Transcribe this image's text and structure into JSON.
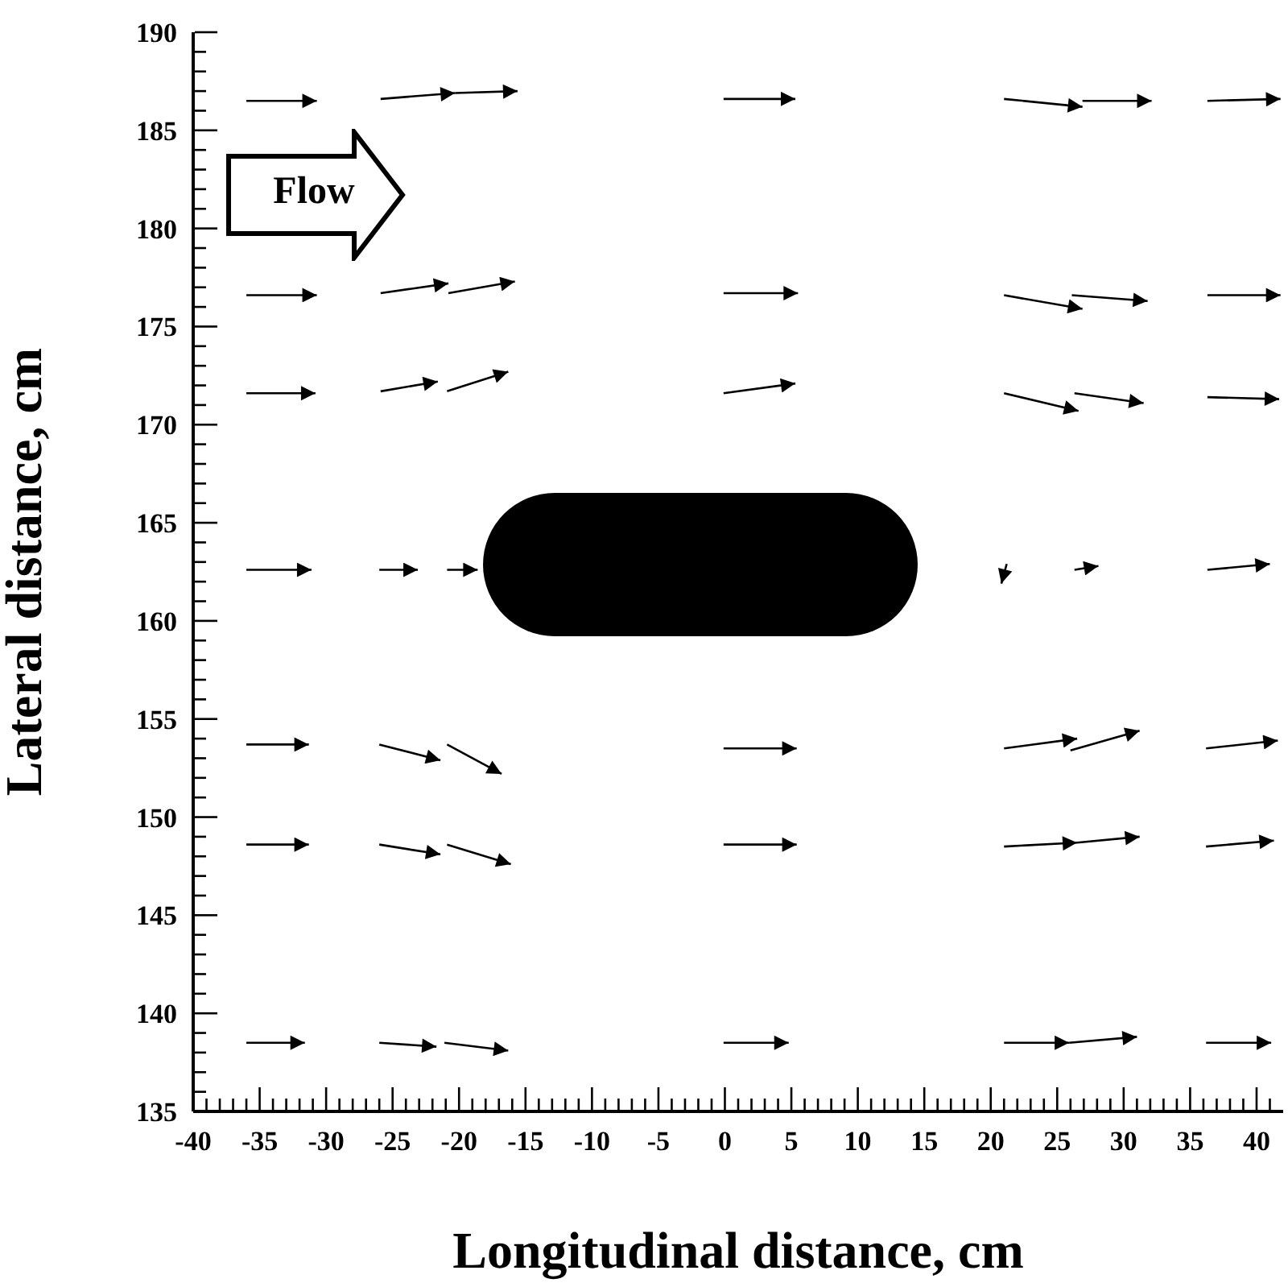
{
  "chart_data": {
    "type": "line",
    "xlabel": "Longitudinal distance, cm",
    "ylabel": "Lateral distance, cm",
    "annotations": [
      "Flow"
    ],
    "xlim": [
      -40,
      42
    ],
    "ylim": [
      135,
      190
    ],
    "line_style": "solid",
    "xticks": [
      -40,
      {
        "value": -39,
        "label": null
      },
      {
        "value": -38,
        "label": null
      },
      {
        "value": -37,
        "label": null
      },
      {
        "value": -36,
        "label": null
      },
      -35,
      {
        "value": -34,
        "label": null
      },
      {
        "value": -33,
        "label": null
      },
      {
        "value": -32,
        "label": null
      },
      {
        "value": -31,
        "label": null
      },
      -30,
      {
        "value": -29,
        "label": null
      },
      {
        "value": -28,
        "label": null
      },
      {
        "value": -27,
        "label": null
      },
      {
        "value": -26,
        "label": null
      },
      -25,
      {
        "value": -24,
        "label": null
      },
      {
        "value": -23,
        "label": null
      },
      {
        "value": -22,
        "label": null
      },
      {
        "value": -21,
        "label": null
      },
      -20,
      {
        "value": -19,
        "label": null
      },
      {
        "value": -18,
        "label": null
      },
      {
        "value": -17,
        "label": null
      },
      {
        "value": -16,
        "label": null
      },
      -15,
      {
        "value": -14,
        "label": null
      },
      {
        "value": -13,
        "label": null
      },
      {
        "value": -12,
        "label": null
      },
      {
        "value": -11,
        "label": null
      },
      -10,
      {
        "value": -9,
        "label": null
      },
      {
        "value": -8,
        "label": null
      },
      {
        "value": -7,
        "label": null
      },
      {
        "value": -6,
        "label": null
      },
      -5,
      {
        "value": -4,
        "label": null
      },
      {
        "value": -3,
        "label": null
      },
      {
        "value": -2,
        "label": null
      },
      {
        "value": -1,
        "label": null
      },
      0,
      {
        "value": 1,
        "label": null
      },
      {
        "value": 2,
        "label": null
      },
      {
        "value": 3,
        "label": null
      },
      {
        "value": 4,
        "label": null
      },
      5,
      {
        "value": 6,
        "label": null
      },
      {
        "value": 7,
        "label": null
      },
      {
        "value": 8,
        "label": null
      },
      {
        "value": 9,
        "label": null
      },
      10,
      {
        "value": 11,
        "label": null
      },
      {
        "value": 12,
        "label": null
      },
      {
        "value": 13,
        "label": null
      },
      {
        "value": 14,
        "label": null
      },
      15,
      {
        "value": 16,
        "label": null
      },
      {
        "value": 17,
        "label": null
      },
      {
        "value": 18,
        "label": null
      },
      {
        "value": 19,
        "label": null
      },
      20,
      {
        "value": 21,
        "label": null
      },
      {
        "value": 22,
        "label": null
      },
      {
        "value": 23,
        "label": null
      },
      {
        "value": 24,
        "label": null
      },
      25,
      {
        "value": 26,
        "label": null
      },
      {
        "value": 27,
        "label": null
      },
      {
        "value": 28,
        "label": null
      },
      {
        "value": 29,
        "label": null
      },
      30,
      {
        "value": 31,
        "label": null
      },
      {
        "value": 32,
        "label": null
      },
      {
        "value": 33,
        "label": null
      },
      {
        "value": 34,
        "label": null
      },
      35,
      {
        "value": 36,
        "label": null
      },
      {
        "value": 37,
        "label": null
      },
      {
        "value": 38,
        "label": null
      },
      {
        "value": 39,
        "label": null
      },
      40,
      {
        "value": 41,
        "label": null
      }
    ],
    "yticks": [
      135,
      {
        "value": 136,
        "label": null
      },
      {
        "value": 137,
        "label": null
      },
      {
        "value": 138,
        "label": null
      },
      {
        "value": 139,
        "label": null
      },
      140,
      {
        "value": 141,
        "label": null
      },
      {
        "value": 142,
        "label": null
      },
      {
        "value": 143,
        "label": null
      },
      {
        "value": 144,
        "label": null
      },
      145,
      {
        "value": 146,
        "label": null
      },
      {
        "value": 147,
        "label": null
      },
      {
        "value": 148,
        "label": null
      },
      {
        "value": 149,
        "label": null
      },
      150,
      {
        "value": 151,
        "label": null
      },
      {
        "value": 152,
        "label": null
      },
      {
        "value": 153,
        "label": null
      },
      {
        "value": 154,
        "label": null
      },
      155,
      {
        "value": 156,
        "label": null
      },
      {
        "value": 157,
        "label": null
      },
      {
        "value": 158,
        "label": null
      },
      {
        "value": 159,
        "label": null
      },
      160,
      {
        "value": 161,
        "label": null
      },
      {
        "value": 162,
        "label": null
      },
      {
        "value": 163,
        "label": null
      },
      {
        "value": 164,
        "label": null
      },
      165,
      {
        "value": 166,
        "label": null
      },
      {
        "value": 167,
        "label": null
      },
      {
        "value": 168,
        "label": null
      },
      {
        "value": 169,
        "label": null
      },
      170,
      {
        "value": 171,
        "label": null
      },
      {
        "value": 172,
        "label": null
      },
      {
        "value": 173,
        "label": null
      },
      {
        "value": 174,
        "label": null
      },
      175,
      {
        "value": 176,
        "label": null
      },
      {
        "value": 177,
        "label": null
      },
      {
        "value": 178,
        "label": null
      },
      {
        "value": 179,
        "label": null
      },
      180,
      {
        "value": 181,
        "label": null
      },
      {
        "value": 182,
        "label": null
      },
      {
        "value": 183,
        "label": null
      },
      {
        "value": 184,
        "label": null
      },
      185,
      {
        "value": 186,
        "label": null
      },
      {
        "value": 187,
        "label": null
      },
      {
        "value": 188,
        "label": null
      },
      {
        "value": 189,
        "label": null
      },
      190
    ],
    "series": [
      {
        "color": "#000000",
        "x": [
          -36.0,
          -30.7
        ],
        "values": [
          186.5,
          186.5
        ]
      },
      {
        "color": "#000000",
        "x": [
          -25.9,
          -20.3
        ],
        "values": [
          186.6,
          186.9
        ]
      },
      {
        "color": "#000000",
        "x": [
          -20.3,
          -15.6
        ],
        "values": [
          186.9,
          187.0
        ]
      },
      {
        "color": "#000000",
        "x": [
          -0.1,
          5.3
        ],
        "values": [
          186.6,
          186.6
        ]
      },
      {
        "color": "#000000",
        "x": [
          21.0,
          26.9
        ],
        "values": [
          186.6,
          186.2
        ]
      },
      {
        "color": "#000000",
        "x": [
          26.9,
          32.1
        ],
        "values": [
          186.5,
          186.5
        ]
      },
      {
        "color": "#000000",
        "x": [
          36.3,
          41.8
        ],
        "values": [
          186.5,
          186.6
        ]
      },
      {
        "color": "#000000",
        "x": [
          -36.0,
          -30.7
        ],
        "values": [
          176.6,
          176.6
        ]
      },
      {
        "color": "#000000",
        "x": [
          -25.9,
          -20.8
        ],
        "values": [
          176.7,
          177.2
        ]
      },
      {
        "color": "#000000",
        "x": [
          -20.8,
          -15.8
        ],
        "values": [
          176.7,
          177.3
        ]
      },
      {
        "color": "#000000",
        "x": [
          -0.1,
          5.5
        ],
        "values": [
          176.7,
          176.7
        ]
      },
      {
        "color": "#000000",
        "x": [
          21.0,
          26.9
        ],
        "values": [
          176.6,
          175.9
        ]
      },
      {
        "color": "#000000",
        "x": [
          26.1,
          31.8
        ],
        "values": [
          176.6,
          176.3
        ]
      },
      {
        "color": "#000000",
        "x": [
          36.3,
          41.8
        ],
        "values": [
          176.6,
          176.6
        ]
      },
      {
        "color": "#000000",
        "x": [
          -36.0,
          -30.8
        ],
        "values": [
          171.6,
          171.6
        ]
      },
      {
        "color": "#000000",
        "x": [
          -25.9,
          -21.6
        ],
        "values": [
          171.7,
          172.2
        ]
      },
      {
        "color": "#000000",
        "x": [
          -20.9,
          -16.3
        ],
        "values": [
          171.7,
          172.7
        ]
      },
      {
        "color": "#000000",
        "x": [
          -0.1,
          5.3
        ],
        "values": [
          171.6,
          172.1
        ]
      },
      {
        "color": "#000000",
        "x": [
          21.0,
          26.6
        ],
        "values": [
          171.6,
          170.7
        ]
      },
      {
        "color": "#000000",
        "x": [
          26.3,
          31.5
        ],
        "values": [
          171.6,
          171.1
        ]
      },
      {
        "color": "#000000",
        "x": [
          36.3,
          41.7
        ],
        "values": [
          171.4,
          171.3
        ]
      },
      {
        "color": "#000000",
        "x": [
          -36.0,
          -31.1
        ],
        "values": [
          162.6,
          162.6
        ]
      },
      {
        "color": "#000000",
        "x": [
          -26.0,
          -23.1
        ],
        "values": [
          162.6,
          162.6
        ]
      },
      {
        "color": "#000000",
        "x": [
          -20.9,
          -18.6
        ],
        "values": [
          162.6,
          162.6
        ]
      },
      {
        "color": "#000000",
        "x": [
          21.2,
          20.8
        ],
        "values": [
          162.9,
          161.9
        ]
      },
      {
        "color": "#000000",
        "x": [
          26.3,
          28.1
        ],
        "values": [
          162.6,
          162.8
        ]
      },
      {
        "color": "#000000",
        "x": [
          36.3,
          41.0
        ],
        "values": [
          162.6,
          162.9
        ]
      },
      {
        "color": "#000000",
        "x": [
          -36.0,
          -31.3
        ],
        "values": [
          153.7,
          153.7
        ]
      },
      {
        "color": "#000000",
        "x": [
          -26.0,
          -21.4
        ],
        "values": [
          153.7,
          152.9
        ]
      },
      {
        "color": "#000000",
        "x": [
          -20.9,
          -16.8
        ],
        "values": [
          153.7,
          152.2
        ]
      },
      {
        "color": "#000000",
        "x": [
          -0.1,
          5.4
        ],
        "values": [
          153.5,
          153.5
        ]
      },
      {
        "color": "#000000",
        "x": [
          21.0,
          26.5
        ],
        "values": [
          153.5,
          154.0
        ]
      },
      {
        "color": "#000000",
        "x": [
          26.0,
          31.2
        ],
        "values": [
          153.4,
          154.4
        ]
      },
      {
        "color": "#000000",
        "x": [
          36.2,
          41.6
        ],
        "values": [
          153.5,
          153.9
        ]
      },
      {
        "color": "#000000",
        "x": [
          -36.0,
          -31.3
        ],
        "values": [
          148.6,
          148.6
        ]
      },
      {
        "color": "#000000",
        "x": [
          -26.0,
          -21.4
        ],
        "values": [
          148.6,
          148.1
        ]
      },
      {
        "color": "#000000",
        "x": [
          -20.9,
          -16.1
        ],
        "values": [
          148.6,
          147.6
        ]
      },
      {
        "color": "#000000",
        "x": [
          -0.1,
          5.4
        ],
        "values": [
          148.6,
          148.6
        ]
      },
      {
        "color": "#000000",
        "x": [
          21.0,
          26.5
        ],
        "values": [
          148.5,
          148.7
        ]
      },
      {
        "color": "#000000",
        "x": [
          26.5,
          31.2
        ],
        "values": [
          148.7,
          149.0
        ]
      },
      {
        "color": "#000000",
        "x": [
          36.2,
          41.3
        ],
        "values": [
          148.5,
          148.8
        ]
      },
      {
        "color": "#000000",
        "x": [
          -36.0,
          -31.6
        ],
        "values": [
          138.5,
          138.5
        ]
      },
      {
        "color": "#000000",
        "x": [
          -26.0,
          -21.7
        ],
        "values": [
          138.5,
          138.3
        ]
      },
      {
        "color": "#000000",
        "x": [
          -21.1,
          -16.3
        ],
        "values": [
          138.5,
          138.1
        ]
      },
      {
        "color": "#000000",
        "x": [
          -0.1,
          4.8
        ],
        "values": [
          138.5,
          138.5
        ]
      },
      {
        "color": "#000000",
        "x": [
          21.0,
          25.9
        ],
        "values": [
          138.5,
          138.5
        ]
      },
      {
        "color": "#000000",
        "x": [
          25.9,
          31.0
        ],
        "values": [
          138.5,
          138.8
        ]
      },
      {
        "color": "#000000",
        "x": [
          36.2,
          41.1
        ],
        "values": [
          138.5,
          138.5
        ]
      }
    ]
  }
}
